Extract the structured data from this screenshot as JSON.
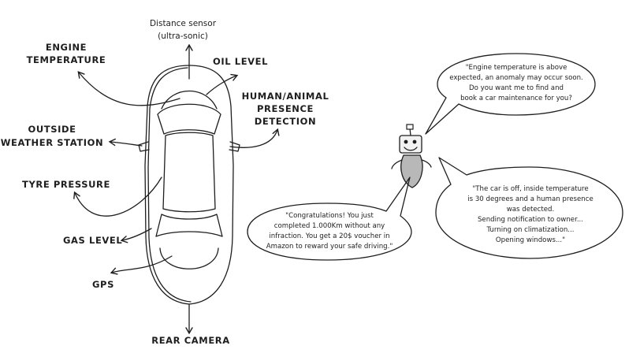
{
  "labels": {
    "distance_sensor": [
      "Distance sensor",
      "(ultra-sonic)"
    ],
    "engine_temperature": [
      "ENGINE",
      "TEMPERATURE"
    ],
    "oil_level": "OIL LEVEL",
    "human_animal": [
      "HUMAN/ANIMAL",
      "PRESENCE",
      "DETECTION"
    ],
    "outside_weather": [
      "OUTSIDE",
      "WEATHER STATION"
    ],
    "tyre_pressure": "TYRE PRESSURE",
    "gas_level": "GAS LEVEL",
    "gps": "GPS",
    "rear_camera": "REAR CAMERA"
  },
  "bubbles": {
    "engine": [
      "\"Engine temperature is above",
      "expected, an anomaly may occur soon.",
      "Do you want me to find and",
      "book a car maintenance for you?"
    ],
    "car_off": [
      "\"The car is off, inside temperature",
      "is 30 degrees and a human presence",
      "was detected.",
      "Sending notification to owner...",
      "Turning on climatization...",
      "Opening windows...\""
    ],
    "congrats": [
      "\"Congratulations! You just",
      "completed 1.000Km without any",
      "infraction. You get a 20$ voucher in",
      "Amazon to reward your safe driving.\""
    ]
  }
}
